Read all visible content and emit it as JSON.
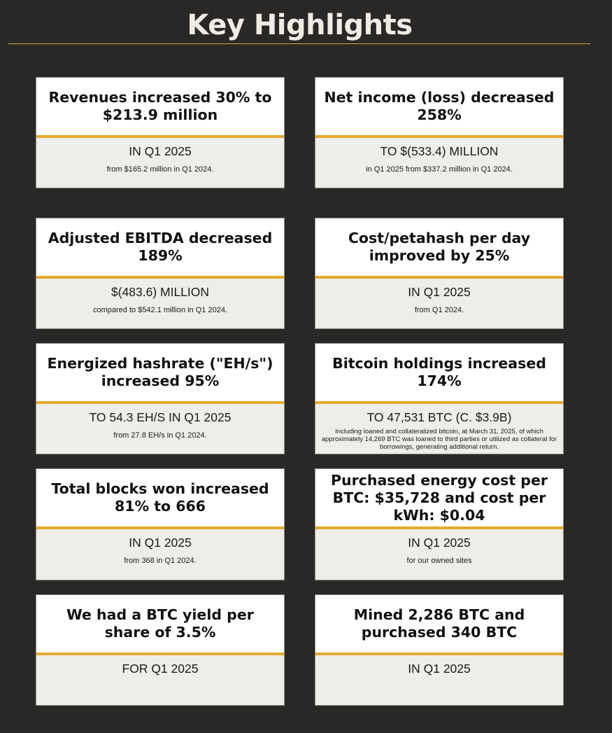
{
  "page": {
    "title": "Key Highlights"
  },
  "cards": [
    {
      "headline": "Revenues increased 30% to $213.9 million",
      "main": "IN Q1 2025",
      "sub": "from $165.2 million in Q1 2024."
    },
    {
      "headline": "Net income (loss) decreased 258%",
      "main": "TO $(533.4) MILLION",
      "sub": "in Q1 2025 from $337.2 million in Q1 2024."
    },
    {
      "headline": "Adjusted EBITDA decreased 189%",
      "main": "$(483.6) MILLION",
      "sub": "compared to $542.1 million in Q1 2024."
    },
    {
      "headline": "Cost/petahash per day improved by 25%",
      "main": "IN Q1 2025",
      "sub": "from Q1 2024."
    },
    {
      "headline": "Energized hashrate (\"EH/s\") increased 95%",
      "main": "TO 54.3 EH/S IN Q1 2025",
      "sub": "from 27.8 EH/s in Q1 2024."
    },
    {
      "headline": "Bitcoin holdings increased 174%",
      "main": "TO 47,531 BTC (C. $3.9B)",
      "sub": "Including loaned and collateralized bitcoin, at March 31, 2025, of which approximately 14,269 BTC was loaned to third parties or utilized as collateral for borrowings, generating additional return."
    },
    {
      "headline": "Total blocks won increased 81% to 666",
      "main": "IN Q1 2025",
      "sub": "from 368 in Q1 2024."
    },
    {
      "headline": "Purchased energy cost per BTC: $35,728 and cost per kWh: $0.04",
      "main": "IN Q1 2025",
      "sub": "for our owned sites"
    },
    {
      "headline": "We had a BTC yield per share of 3.5%",
      "main": "FOR Q1 2025",
      "sub": ""
    },
    {
      "headline": "Mined 2,286 BTC and purchased 340 BTC",
      "main": "IN Q1 2025",
      "sub": ""
    }
  ]
}
